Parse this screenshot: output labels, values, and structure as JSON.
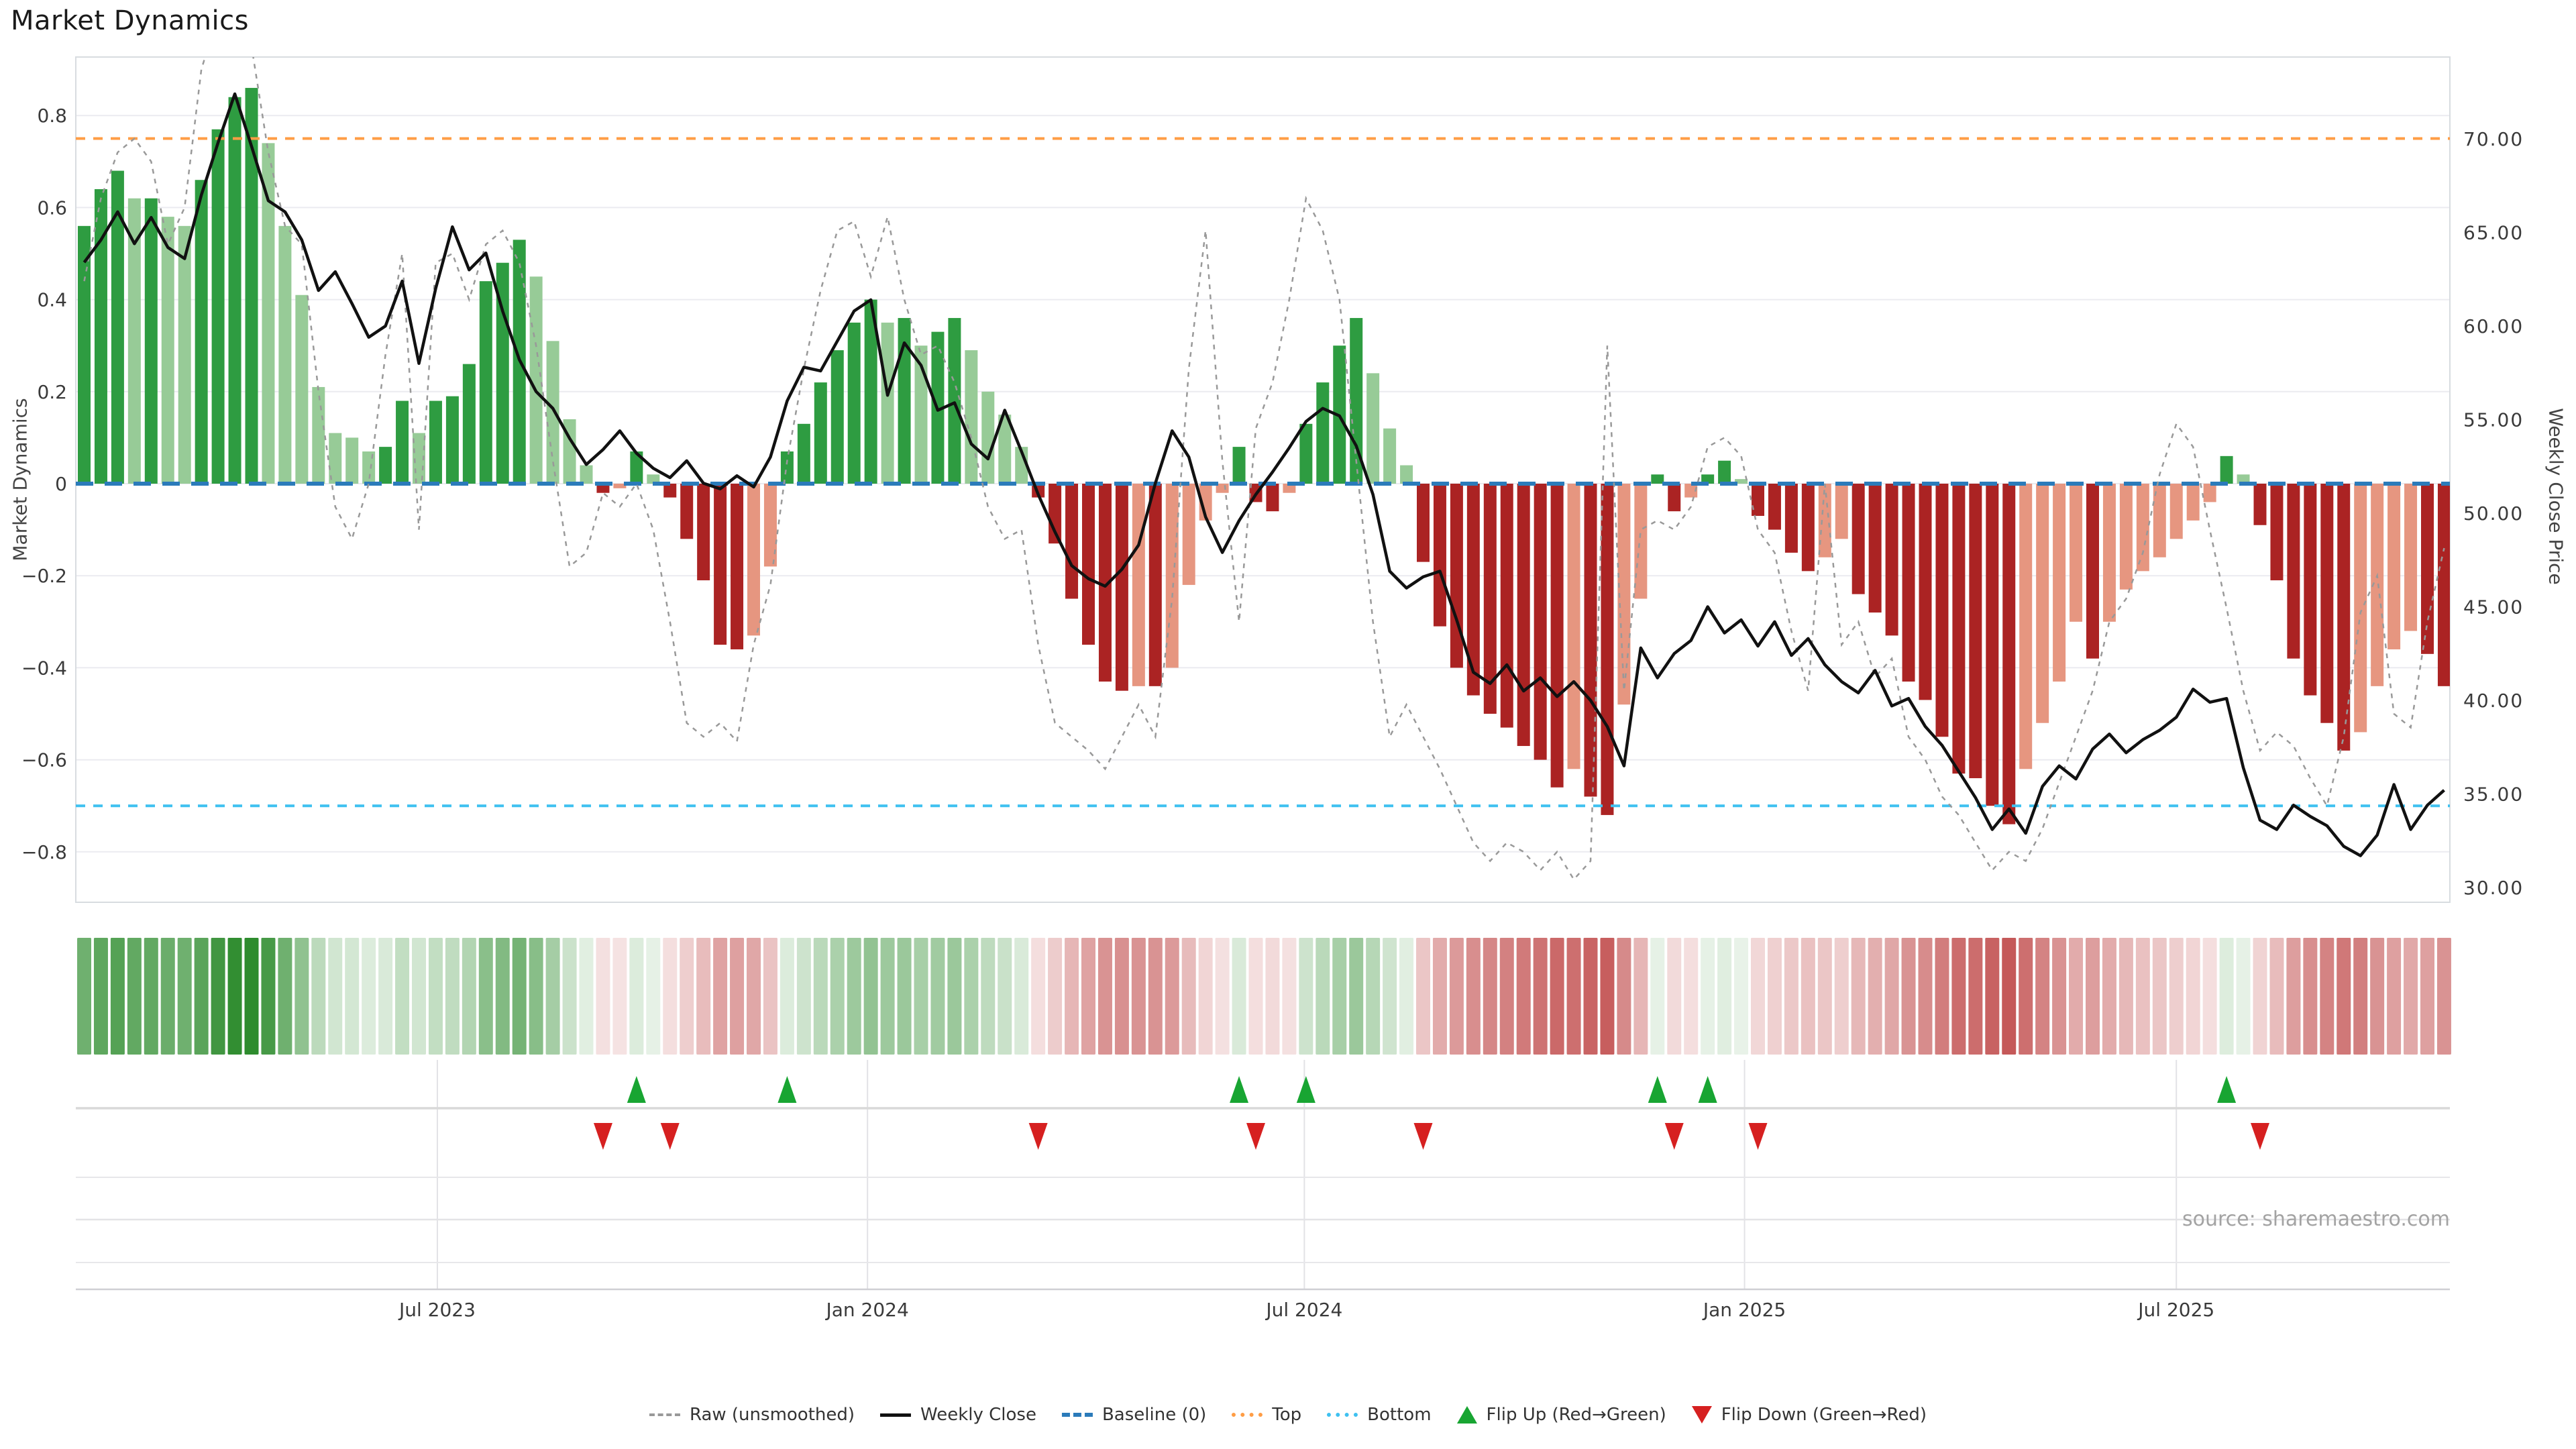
{
  "title": "Market Dynamics",
  "source": "source: sharemaestro.com",
  "axes": {
    "left": {
      "title": "Market Dynamics",
      "ticks": [
        "0.8",
        "0.6",
        "0.4",
        "0.2",
        "0",
        "−0.2",
        "−0.4",
        "−0.6",
        "−0.8"
      ],
      "tick_values": [
        0.8,
        0.6,
        0.4,
        0.2,
        0,
        -0.2,
        -0.4,
        -0.6,
        -0.8
      ]
    },
    "right": {
      "title": "Weekly Close Price",
      "ticks": [
        "70.00",
        "65.00",
        "60.00",
        "55.00",
        "50.00",
        "45.00",
        "40.00",
        "35.00",
        "30.00"
      ],
      "tick_values": [
        70,
        65,
        60,
        55,
        50,
        45,
        40,
        35,
        30
      ]
    },
    "x": {
      "ticks": [
        "Jul 2023",
        "Jan 2024",
        "Jul 2024",
        "Jan 2025",
        "Jul 2025"
      ],
      "tick_weeks": [
        21.1,
        46.8,
        72.9,
        99.2,
        125.0
      ]
    }
  },
  "legend": {
    "items": [
      {
        "label": "Raw (unsmoothed)",
        "swatch": "raw"
      },
      {
        "label": "Weekly Close",
        "swatch": "close"
      },
      {
        "label": "Baseline (0)",
        "swatch": "baseline"
      },
      {
        "label": "Top",
        "swatch": "top"
      },
      {
        "label": "Bottom",
        "swatch": "bottom"
      },
      {
        "label": "Flip Up (Red→Green)",
        "swatch": "flip-up"
      },
      {
        "label": "Flip Down (Green→Red)",
        "swatch": "flip-down"
      }
    ]
  },
  "colors": {
    "bar_up_strong": "#2e9c41",
    "bar_up_weak": "#97cb97",
    "bar_down_strong": "#ab2323",
    "bar_down_weak": "#e69680",
    "weekly_close": "#111111",
    "raw": "#999999",
    "baseline": "#2b7bba",
    "top": "#ff9d45",
    "bottom": "#3fc1f0",
    "flip_up": "#18a532",
    "flip_down": "#d62020",
    "grid": "#ebebf0",
    "frame": "#d8dce0",
    "tick_text": "#3a3a3a"
  },
  "chart_data": {
    "type": "bar",
    "subtype": "weekly oscillator bars with price line overlay and color heatmap strip",
    "n_weeks": 142,
    "title": "Market Dynamics",
    "xlabel": "",
    "ylabel_left": "Market Dynamics",
    "ylabel_right": "Weekly Close Price",
    "left_ylim": [
      -0.91,
      0.93
    ],
    "right_ylim": [
      29.2,
      74.4
    ],
    "grid": "horizontal only",
    "legend_position": "bottom center",
    "reference_lines": {
      "baseline": 0,
      "top": 0.75,
      "bottom": -0.7
    },
    "bar_shading_note": "bars drawn dark when |value| is rising vs prior week or sign flips, pale when fading",
    "heatmap_note": "strip below chart encodes the same weekly Market Dynamics values as green/red intensity",
    "flip_up_weeks": [
      33,
      42,
      69,
      73,
      94,
      97,
      128
    ],
    "flip_down_weeks": [
      31,
      35,
      57,
      70,
      80,
      95,
      100,
      130
    ],
    "series": [
      {
        "name": "Market Dynamics",
        "type": "bar",
        "axis": "left",
        "values": [
          0.56,
          0.64,
          0.68,
          0.62,
          0.62,
          0.58,
          0.56,
          0.66,
          0.77,
          0.84,
          0.86,
          0.74,
          0.56,
          0.41,
          0.21,
          0.11,
          0.1,
          0.07,
          0.08,
          0.18,
          0.11,
          0.18,
          0.19,
          0.26,
          0.44,
          0.48,
          0.53,
          0.45,
          0.31,
          0.14,
          0.04,
          -0.02,
          -0.01,
          0.07,
          0.02,
          -0.03,
          -0.12,
          -0.21,
          -0.35,
          -0.36,
          -0.33,
          -0.18,
          0.07,
          0.13,
          0.22,
          0.29,
          0.35,
          0.4,
          0.35,
          0.36,
          0.3,
          0.33,
          0.36,
          0.29,
          0.2,
          0.15,
          0.08,
          -0.03,
          -0.13,
          -0.25,
          -0.35,
          -0.43,
          -0.45,
          -0.44,
          -0.44,
          -0.4,
          -0.22,
          -0.08,
          -0.02,
          0.08,
          -0.04,
          -0.06,
          -0.02,
          0.13,
          0.22,
          0.3,
          0.36,
          0.24,
          0.12,
          0.04,
          -0.17,
          -0.31,
          -0.4,
          -0.46,
          -0.5,
          -0.53,
          -0.57,
          -0.6,
          -0.66,
          -0.62,
          -0.68,
          -0.72,
          -0.48,
          -0.25,
          0.02,
          -0.06,
          -0.03,
          0.02,
          0.05,
          0.01,
          -0.07,
          -0.1,
          -0.15,
          -0.19,
          -0.16,
          -0.12,
          -0.24,
          -0.28,
          -0.33,
          -0.43,
          -0.47,
          -0.55,
          -0.63,
          -0.64,
          -0.7,
          -0.74,
          -0.62,
          -0.52,
          -0.43,
          -0.3,
          -0.38,
          -0.3,
          -0.23,
          -0.19,
          -0.16,
          -0.12,
          -0.08,
          -0.04,
          0.06,
          0.02,
          -0.09,
          -0.21,
          -0.38,
          -0.46,
          -0.52,
          -0.58,
          -0.54,
          -0.44,
          -0.36,
          -0.32,
          -0.37,
          -0.44
        ]
      },
      {
        "name": "Raw (unsmoothed)",
        "type": "line",
        "style": "dashed",
        "axis": "left",
        "values": [
          0.44,
          0.62,
          0.72,
          0.75,
          0.7,
          0.52,
          0.6,
          0.9,
          1.02,
          1.05,
          0.95,
          0.72,
          0.56,
          0.52,
          0.2,
          -0.05,
          -0.12,
          0.0,
          0.28,
          0.5,
          -0.1,
          0.48,
          0.5,
          0.4,
          0.52,
          0.55,
          0.48,
          0.3,
          0.05,
          -0.18,
          -0.15,
          -0.02,
          -0.05,
          0.0,
          -0.1,
          -0.3,
          -0.52,
          -0.55,
          -0.52,
          -0.56,
          -0.35,
          -0.22,
          0.05,
          0.25,
          0.42,
          0.55,
          0.57,
          0.45,
          0.58,
          0.4,
          0.28,
          0.3,
          0.22,
          0.1,
          -0.05,
          -0.12,
          -0.1,
          -0.35,
          -0.52,
          -0.55,
          -0.58,
          -0.62,
          -0.55,
          -0.48,
          -0.55,
          -0.25,
          0.25,
          0.55,
          0.05,
          -0.3,
          0.12,
          0.22,
          0.4,
          0.62,
          0.55,
          0.4,
          0.05,
          -0.3,
          -0.55,
          -0.48,
          -0.55,
          -0.62,
          -0.7,
          -0.78,
          -0.82,
          -0.78,
          -0.8,
          -0.84,
          -0.8,
          -0.86,
          -0.82,
          0.3,
          -0.45,
          -0.1,
          -0.08,
          -0.1,
          -0.05,
          0.08,
          0.1,
          0.06,
          -0.1,
          -0.15,
          -0.32,
          -0.45,
          0.0,
          -0.35,
          -0.3,
          -0.42,
          -0.38,
          -0.55,
          -0.6,
          -0.68,
          -0.72,
          -0.78,
          -0.84,
          -0.8,
          -0.82,
          -0.75,
          -0.65,
          -0.55,
          -0.45,
          -0.3,
          -0.25,
          -0.15,
          0.02,
          0.13,
          0.08,
          -0.1,
          -0.27,
          -0.45,
          -0.58,
          -0.54,
          -0.57,
          -0.64,
          -0.7,
          -0.55,
          -0.28,
          -0.2,
          -0.5,
          -0.53,
          -0.3,
          -0.14
        ]
      },
      {
        "name": "Weekly Close",
        "type": "line",
        "axis": "right",
        "values": [
          63.4,
          64.6,
          66.1,
          64.4,
          65.8,
          64.2,
          63.6,
          67.0,
          69.8,
          72.4,
          69.6,
          66.7,
          66.1,
          64.6,
          61.9,
          62.9,
          61.2,
          59.4,
          60.0,
          62.4,
          58.0,
          62.0,
          65.3,
          63.0,
          63.9,
          60.8,
          58.2,
          56.5,
          55.6,
          54.0,
          52.6,
          53.4,
          54.4,
          53.2,
          52.4,
          51.9,
          52.8,
          51.6,
          51.3,
          52.0,
          51.4,
          53.0,
          56.0,
          57.8,
          57.6,
          59.2,
          60.8,
          61.4,
          56.3,
          59.1,
          57.9,
          55.5,
          55.9,
          53.7,
          52.9,
          55.5,
          53.3,
          51.0,
          49.0,
          47.2,
          46.5,
          46.1,
          47.0,
          48.3,
          51.6,
          54.4,
          53.0,
          49.8,
          47.9,
          49.6,
          51.0,
          52.2,
          53.5,
          54.9,
          55.6,
          55.2,
          53.6,
          51.0,
          46.9,
          46.0,
          46.6,
          46.9,
          44.3,
          41.5,
          40.9,
          41.9,
          40.5,
          41.2,
          40.2,
          41.0,
          40.0,
          38.6,
          36.5,
          42.8,
          41.2,
          42.5,
          43.2,
          45.0,
          43.6,
          44.3,
          42.9,
          44.2,
          42.4,
          43.3,
          41.9,
          41.0,
          40.4,
          41.6,
          39.7,
          40.1,
          38.6,
          37.6,
          36.2,
          34.8,
          33.1,
          34.2,
          32.9,
          35.4,
          36.5,
          35.8,
          37.4,
          38.2,
          37.2,
          37.9,
          38.4,
          39.1,
          40.6,
          39.9,
          40.1,
          36.4,
          33.6,
          33.1,
          34.4,
          33.8,
          33.3,
          32.2,
          31.7,
          32.8,
          35.5,
          33.1,
          34.4,
          35.2
        ]
      }
    ]
  }
}
